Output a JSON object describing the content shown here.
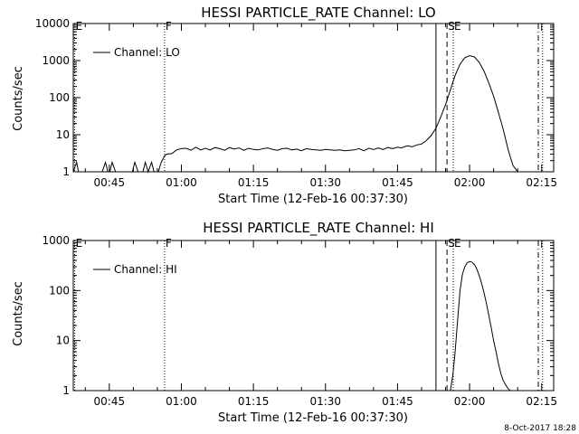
{
  "footer_date": "8-Oct-2017 18:28",
  "colors": {
    "background": "#ffffff",
    "ink": "#000000"
  },
  "chart_data": [
    {
      "type": "line",
      "title": "HESSI PARTICLE_RATE Channel: LO",
      "xlabel": "Start Time (12-Feb-16 00:37:30)",
      "ylabel": "Counts/sec",
      "yscale": "log",
      "ylim": [
        1,
        10000
      ],
      "xlim_minutes": [
        37.5,
        137.5
      ],
      "x_ticks": [
        {
          "min": 45,
          "label": "00:45"
        },
        {
          "min": 60,
          "label": "01:00"
        },
        {
          "min": 75,
          "label": "01:15"
        },
        {
          "min": 90,
          "label": "01:30"
        },
        {
          "min": 105,
          "label": "01:45"
        },
        {
          "min": 120,
          "label": "02:00"
        },
        {
          "min": 135,
          "label": "02:15"
        }
      ],
      "y_ticks": [
        {
          "v": 1,
          "label": "1"
        },
        {
          "v": 10,
          "label": "10"
        },
        {
          "v": 100,
          "label": "100"
        },
        {
          "v": 1000,
          "label": "1000"
        },
        {
          "v": 10000,
          "label": "10000"
        }
      ],
      "legend": {
        "label": "Channel: LO",
        "position": "top-left"
      },
      "markers": [
        {
          "min": 37.8,
          "style": "dotted",
          "label": "E"
        },
        {
          "min": 56.5,
          "style": "dotted",
          "label": "F"
        },
        {
          "min": 113.0,
          "style": "solid",
          "label": ""
        },
        {
          "min": 115.3,
          "style": "dashed",
          "label": "S"
        },
        {
          "min": 116.6,
          "style": "dotted",
          "label": "E"
        },
        {
          "min": 134.3,
          "style": "dashdot",
          "label": ""
        },
        {
          "min": 135.2,
          "style": "dotted",
          "label": ""
        }
      ],
      "series": [
        {
          "x": [
            37.5,
            38.2,
            38.6,
            39.1,
            39.8,
            41.2,
            42.0,
            43.5,
            44.2,
            44.7,
            45.1,
            45.6,
            46.3,
            47.3,
            48.5,
            49.2,
            49.8,
            50.3,
            51.0,
            52.0,
            52.5,
            53.1,
            53.8,
            54.3,
            55.2,
            55.8,
            56.5,
            57.0,
            58.0,
            59.0,
            60.0,
            61.0,
            62.0,
            63.0,
            64.0,
            65.0,
            66.0,
            67.0,
            68.0,
            69.0,
            70.0,
            71.0,
            72.0,
            73.0,
            74.0,
            75.0,
            76.0,
            77.0,
            78.0,
            79.0,
            80.0,
            81.0,
            82.0,
            83.0,
            84.0,
            85.0,
            86.0,
            87.0,
            88.0,
            89.0,
            90.0,
            91.0,
            92.0,
            93.0,
            94.0,
            95.0,
            96.0,
            97.0,
            98.0,
            99.0,
            100.0,
            101.0,
            102.0,
            103.0,
            104.0,
            105.0,
            105.8,
            106.5,
            107.2,
            108.0,
            109.0,
            110.0,
            111.0,
            112.0,
            113.0,
            114.0,
            115.0,
            116.0,
            117.0,
            118.0,
            119.0,
            120.0,
            121.0,
            122.0,
            123.0,
            124.0,
            125.0,
            126.0,
            127.0,
            128.0,
            129.0,
            130.0
          ],
          "y": [
            1,
            1.8,
            1,
            1,
            1,
            1,
            1,
            1,
            1.8,
            1,
            1,
            1.8,
            1,
            1,
            1,
            1,
            1,
            1.8,
            1,
            1,
            1.8,
            1,
            1.8,
            1,
            1,
            1.8,
            2.7,
            3.0,
            3.1,
            3.9,
            4.2,
            4.3,
            3.8,
            4.6,
            3.9,
            4.3,
            3.9,
            4.5,
            4.2,
            3.8,
            4.5,
            4.1,
            4.4,
            3.8,
            4.3,
            4.0,
            3.9,
            4.2,
            4.4,
            4.0,
            3.8,
            4.2,
            4.3,
            3.9,
            4.1,
            3.7,
            4.2,
            4.0,
            3.9,
            3.8,
            4.0,
            3.9,
            3.8,
            3.9,
            3.7,
            3.8,
            3.9,
            4.2,
            3.7,
            4.3,
            4.0,
            4.4,
            4.0,
            4.5,
            4.2,
            4.6,
            4.4,
            4.8,
            5.0,
            4.7,
            5.3,
            5.6,
            7.0,
            9.5,
            15,
            30,
            65,
            160,
            400,
            800,
            1200,
            1350,
            1250,
            900,
            520,
            250,
            110,
            40,
            14,
            4,
            1.5,
            1
          ]
        }
      ]
    },
    {
      "type": "line",
      "title": "HESSI PARTICLE_RATE Channel: HI",
      "xlabel": "Start Time (12-Feb-16 00:37:30)",
      "ylabel": "Counts/sec",
      "yscale": "log",
      "ylim": [
        1,
        1000
      ],
      "xlim_minutes": [
        37.5,
        137.5
      ],
      "x_ticks": [
        {
          "min": 45,
          "label": "00:45"
        },
        {
          "min": 60,
          "label": "01:00"
        },
        {
          "min": 75,
          "label": "01:15"
        },
        {
          "min": 90,
          "label": "01:30"
        },
        {
          "min": 105,
          "label": "01:45"
        },
        {
          "min": 120,
          "label": "02:00"
        },
        {
          "min": 135,
          "label": "02:15"
        }
      ],
      "y_ticks": [
        {
          "v": 1,
          "label": "1"
        },
        {
          "v": 10,
          "label": "10"
        },
        {
          "v": 100,
          "label": "100"
        },
        {
          "v": 1000,
          "label": "1000"
        }
      ],
      "legend": {
        "label": "Channel: HI",
        "position": "top-left"
      },
      "markers": [
        {
          "min": 37.8,
          "style": "dotted",
          "label": "E"
        },
        {
          "min": 56.5,
          "style": "dotted",
          "label": "F"
        },
        {
          "min": 113.0,
          "style": "solid",
          "label": ""
        },
        {
          "min": 115.3,
          "style": "dashed",
          "label": "S"
        },
        {
          "min": 116.6,
          "style": "dotted",
          "label": "E"
        },
        {
          "min": 134.3,
          "style": "dashdot",
          "label": ""
        },
        {
          "min": 135.2,
          "style": "dotted",
          "label": ""
        }
      ],
      "series": [
        {
          "x": [
            116.0,
            116.5,
            117.0,
            117.5,
            118.0,
            118.5,
            119.0,
            119.5,
            120.0,
            120.5,
            121.0,
            121.5,
            122.0,
            122.5,
            123.0,
            123.5,
            124.0,
            124.5,
            125.0,
            125.5,
            126.0,
            126.5,
            127.0,
            127.5,
            128.0,
            128.5
          ],
          "y": [
            1,
            2,
            6,
            25,
            100,
            210,
            300,
            360,
            380,
            370,
            330,
            270,
            200,
            140,
            90,
            55,
            32,
            18,
            10,
            6,
            3.5,
            2.2,
            1.6,
            1.3,
            1.1,
            1
          ]
        }
      ]
    }
  ]
}
